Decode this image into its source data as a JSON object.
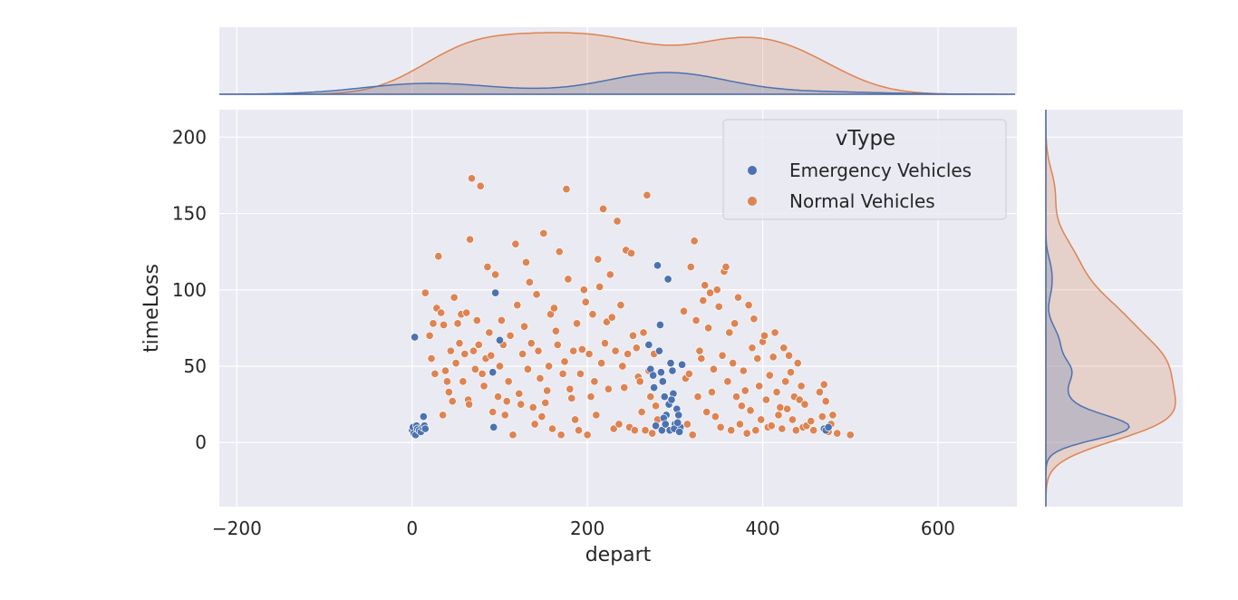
{
  "chart_data": {
    "type": "scatter",
    "xlabel": "depart",
    "ylabel": "timeLoss",
    "xlim": [
      -220,
      690
    ],
    "ylim": [
      -42,
      218
    ],
    "xticks": [
      -200,
      0,
      200,
      400,
      600
    ],
    "yticks": [
      0,
      50,
      100,
      150,
      200
    ],
    "xtick_labels": [
      "−200",
      "0",
      "200",
      "400",
      "600"
    ],
    "ytick_labels": [
      "0",
      "50",
      "100",
      "150",
      "200"
    ],
    "grid": true,
    "legend": {
      "title": "vType",
      "placement": "top-right",
      "entries": [
        "Emergency Vehicles",
        "Normal Vehicles"
      ]
    },
    "marginals": {
      "type": "kde",
      "top": "depart",
      "right": "timeLoss",
      "fill": true
    },
    "series": [
      {
        "name": "Emergency Vehicles",
        "color": "#4c72b0",
        "points": [
          [
            3,
            69
          ],
          [
            0,
            8
          ],
          [
            1,
            10
          ],
          [
            2,
            6
          ],
          [
            4,
            5
          ],
          [
            5,
            11
          ],
          [
            6,
            9
          ],
          [
            8,
            8
          ],
          [
            10,
            7
          ],
          [
            12,
            10
          ],
          [
            13,
            17
          ],
          [
            14,
            11
          ],
          [
            15,
            9
          ],
          [
            92,
            46
          ],
          [
            93,
            10
          ],
          [
            95,
            98
          ],
          [
            100,
            67
          ],
          [
            270,
            64
          ],
          [
            272,
            48
          ],
          [
            275,
            44
          ],
          [
            276,
            36
          ],
          [
            278,
            11
          ],
          [
            280,
            116
          ],
          [
            282,
            60
          ],
          [
            284,
            46
          ],
          [
            286,
            40
          ],
          [
            288,
            30
          ],
          [
            285,
            8
          ],
          [
            290,
            18
          ],
          [
            292,
            107
          ],
          [
            293,
            25
          ],
          [
            295,
            52
          ],
          [
            297,
            47
          ],
          [
            298,
            32
          ],
          [
            300,
            12
          ],
          [
            302,
            22
          ],
          [
            304,
            18
          ],
          [
            306,
            10
          ],
          [
            308,
            51
          ],
          [
            287,
            16
          ],
          [
            289,
            12
          ],
          [
            294,
            8
          ],
          [
            299,
            9
          ],
          [
            303,
            13
          ],
          [
            305,
            7
          ],
          [
            296,
            28
          ],
          [
            283,
            77
          ],
          [
            470,
            9
          ],
          [
            472,
            8
          ],
          [
            475,
            10
          ]
        ]
      },
      {
        "name": "Normal Vehicles",
        "color": "#dd8452",
        "points": [
          [
            15,
            98
          ],
          [
            20,
            70
          ],
          [
            22,
            55
          ],
          [
            24,
            78
          ],
          [
            26,
            45
          ],
          [
            28,
            88
          ],
          [
            30,
            122
          ],
          [
            33,
            85
          ],
          [
            35,
            18
          ],
          [
            36,
            77
          ],
          [
            38,
            47
          ],
          [
            40,
            40
          ],
          [
            42,
            33
          ],
          [
            44,
            60
          ],
          [
            46,
            27
          ],
          [
            48,
            95
          ],
          [
            50,
            52
          ],
          [
            52,
            78
          ],
          [
            54,
            65
          ],
          [
            56,
            84
          ],
          [
            58,
            40
          ],
          [
            60,
            58
          ],
          [
            62,
            85
          ],
          [
            64,
            28
          ],
          [
            65,
            25
          ],
          [
            66,
            133
          ],
          [
            68,
            173
          ],
          [
            70,
            60
          ],
          [
            72,
            48
          ],
          [
            74,
            80
          ],
          [
            76,
            64
          ],
          [
            78,
            168
          ],
          [
            80,
            45
          ],
          [
            82,
            37
          ],
          [
            84,
            55
          ],
          [
            86,
            115
          ],
          [
            88,
            72
          ],
          [
            90,
            57
          ],
          [
            92,
            20
          ],
          [
            95,
            110
          ],
          [
            98,
            30
          ],
          [
            100,
            50
          ],
          [
            102,
            80
          ],
          [
            104,
            64
          ],
          [
            106,
            18
          ],
          [
            108,
            27
          ],
          [
            110,
            40
          ],
          [
            112,
            70
          ],
          [
            115,
            5
          ],
          [
            118,
            130
          ],
          [
            120,
            90
          ],
          [
            122,
            32
          ],
          [
            124,
            25
          ],
          [
            126,
            58
          ],
          [
            128,
            76
          ],
          [
            130,
            118
          ],
          [
            132,
            48
          ],
          [
            134,
            105
          ],
          [
            136,
            65
          ],
          [
            138,
            23
          ],
          [
            140,
            12
          ],
          [
            142,
            97
          ],
          [
            144,
            60
          ],
          [
            146,
            42
          ],
          [
            148,
            17
          ],
          [
            150,
            137
          ],
          [
            152,
            26
          ],
          [
            154,
            34
          ],
          [
            156,
            50
          ],
          [
            158,
            84
          ],
          [
            160,
            9
          ],
          [
            162,
            88
          ],
          [
            164,
            73
          ],
          [
            166,
            64
          ],
          [
            168,
            125
          ],
          [
            170,
            5
          ],
          [
            172,
            45
          ],
          [
            174,
            53
          ],
          [
            176,
            166
          ],
          [
            178,
            107
          ],
          [
            180,
            35
          ],
          [
            182,
            29
          ],
          [
            184,
            60
          ],
          [
            186,
            15
          ],
          [
            188,
            78
          ],
          [
            190,
            8
          ],
          [
            192,
            45
          ],
          [
            194,
            61
          ],
          [
            196,
            100
          ],
          [
            198,
            92
          ],
          [
            200,
            5
          ],
          [
            202,
            58
          ],
          [
            204,
            30
          ],
          [
            206,
            84
          ],
          [
            208,
            40
          ],
          [
            210,
            18
          ],
          [
            212,
            120
          ],
          [
            214,
            102
          ],
          [
            216,
            52
          ],
          [
            218,
            153
          ],
          [
            220,
            65
          ],
          [
            222,
            79
          ],
          [
            224,
            35
          ],
          [
            226,
            110
          ],
          [
            228,
            82
          ],
          [
            230,
            9
          ],
          [
            232,
            60
          ],
          [
            234,
            145
          ],
          [
            236,
            12
          ],
          [
            238,
            90
          ],
          [
            240,
            50
          ],
          [
            242,
            36
          ],
          [
            244,
            126
          ],
          [
            246,
            58
          ],
          [
            248,
            10
          ],
          [
            250,
            124
          ],
          [
            252,
            70
          ],
          [
            254,
            8
          ],
          [
            256,
            62
          ],
          [
            258,
            43
          ],
          [
            260,
            40
          ],
          [
            262,
            20
          ],
          [
            264,
            72
          ],
          [
            266,
            8
          ],
          [
            268,
            162
          ],
          [
            270,
            47
          ],
          [
            272,
            30
          ],
          [
            274,
            6
          ],
          [
            276,
            58
          ],
          [
            278,
            24
          ],
          [
            280,
            15
          ],
          [
            310,
            86
          ],
          [
            312,
            42
          ],
          [
            314,
            12
          ],
          [
            316,
            45
          ],
          [
            318,
            115
          ],
          [
            320,
            5
          ],
          [
            322,
            132
          ],
          [
            324,
            80
          ],
          [
            326,
            30
          ],
          [
            328,
            60
          ],
          [
            330,
            55
          ],
          [
            332,
            93
          ],
          [
            334,
            103
          ],
          [
            336,
            20
          ],
          [
            338,
            75
          ],
          [
            340,
            98
          ],
          [
            342,
            33
          ],
          [
            344,
            48
          ],
          [
            346,
            17
          ],
          [
            348,
            100
          ],
          [
            350,
            89
          ],
          [
            352,
            10
          ],
          [
            354,
            57
          ],
          [
            356,
            112
          ],
          [
            358,
            115
          ],
          [
            360,
            40
          ],
          [
            362,
            72
          ],
          [
            364,
            8
          ],
          [
            366,
            52
          ],
          [
            368,
            78
          ],
          [
            370,
            30
          ],
          [
            372,
            95
          ],
          [
            374,
            12
          ],
          [
            376,
            24
          ],
          [
            378,
            47
          ],
          [
            380,
            34
          ],
          [
            382,
            6
          ],
          [
            384,
            90
          ],
          [
            386,
            21
          ],
          [
            388,
            62
          ],
          [
            390,
            81
          ],
          [
            392,
            8
          ],
          [
            394,
            55
          ],
          [
            396,
            37
          ],
          [
            398,
            15
          ],
          [
            400,
            66
          ],
          [
            402,
            70
          ],
          [
            404,
            28
          ],
          [
            406,
            10
          ],
          [
            408,
            44
          ],
          [
            410,
            11
          ],
          [
            412,
            56
          ],
          [
            414,
            72
          ],
          [
            416,
            33
          ],
          [
            418,
            18
          ],
          [
            420,
            23
          ],
          [
            422,
            9
          ],
          [
            424,
            62
          ],
          [
            426,
            40
          ],
          [
            428,
            22
          ],
          [
            430,
            57
          ],
          [
            432,
            46
          ],
          [
            434,
            15
          ],
          [
            436,
            30
          ],
          [
            438,
            8
          ],
          [
            440,
            52
          ],
          [
            442,
            28
          ],
          [
            444,
            37
          ],
          [
            446,
            10
          ],
          [
            448,
            25
          ],
          [
            450,
            11
          ],
          [
            455,
            14
          ],
          [
            458,
            8
          ],
          [
            465,
            33
          ],
          [
            468,
            17
          ],
          [
            470,
            38
          ],
          [
            472,
            27
          ],
          [
            475,
            7
          ],
          [
            478,
            12
          ],
          [
            480,
            18
          ],
          [
            485,
            6
          ],
          [
            500,
            5
          ]
        ]
      }
    ]
  }
}
